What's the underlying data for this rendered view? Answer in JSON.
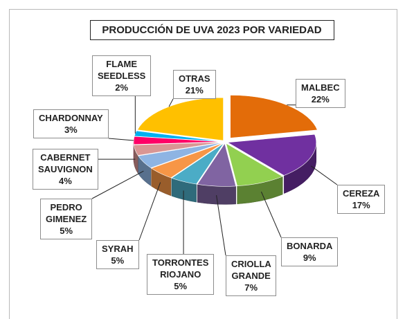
{
  "chart_data": {
    "type": "pie3d",
    "title": "PRODUCCIÓN DE UVA 2023 POR VARIEDAD",
    "categories": [
      "MALBEC",
      "CEREZA",
      "BONARDA",
      "CRIOLLA GRANDE",
      "TORRONTES RIOJANO",
      "SYRAH",
      "PEDRO GIMENEZ",
      "CABERNET SAUVIGNON",
      "CHARDONNAY",
      "FLAME SEEDLESS",
      "OTRAS"
    ],
    "values": [
      22,
      17,
      9,
      7,
      5,
      5,
      5,
      4,
      3,
      2,
      21
    ],
    "value_labels": [
      "22%",
      "17%",
      "9%",
      "7%",
      "5%",
      "5%",
      "5%",
      "4%",
      "3%",
      "2%",
      "21%"
    ],
    "colors": [
      "#e36c09",
      "#7030a0",
      "#92d050",
      "#8064a2",
      "#4bacc6",
      "#f79646",
      "#8eb4e3",
      "#d99694",
      "#ff0066",
      "#00b0f0",
      "#ffc000"
    ]
  }
}
